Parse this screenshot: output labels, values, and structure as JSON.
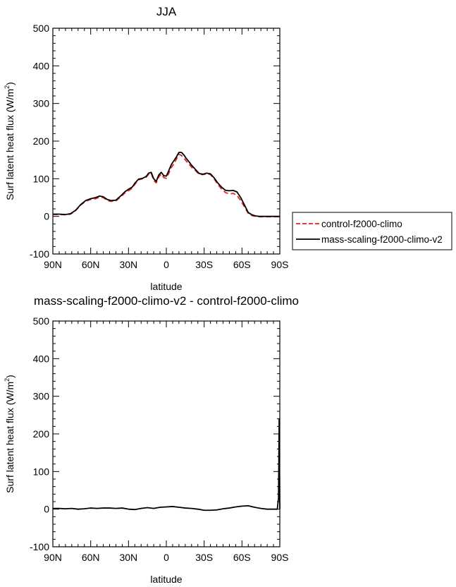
{
  "chart_data": [
    {
      "type": "line",
      "title": "JJA",
      "xlabel": "latitude",
      "ylabel": "Surf latent heat flux (W/m",
      "ylabel_sup": "2",
      "ylabel_end": ")",
      "xlim": [
        90,
        -90
      ],
      "ylim": [
        -100,
        500
      ],
      "xticks": [
        90,
        60,
        30,
        0,
        -30,
        -60,
        -90
      ],
      "xtick_labels": [
        "90N",
        "60N",
        "30N",
        "0",
        "30S",
        "60S",
        "90S"
      ],
      "yticks": [
        -100,
        0,
        100,
        200,
        300,
        400,
        500
      ],
      "ytick_labels": [
        "-100",
        "0",
        "100",
        "200",
        "300",
        "400",
        "500"
      ],
      "legend": "right-outside",
      "series": [
        {
          "name": "control-f2000-climo",
          "color": "#e8221c",
          "dash": "dashed",
          "x": [
            90,
            85,
            80,
            76,
            72,
            68,
            64,
            60,
            56,
            53,
            50,
            47,
            44,
            40,
            36,
            33,
            30,
            27,
            25,
            22,
            19,
            16,
            14,
            12,
            10,
            8,
            6,
            4,
            2,
            0,
            -2,
            -4,
            -6,
            -8,
            -10,
            -12,
            -14,
            -16,
            -18,
            -20,
            -23,
            -26,
            -29,
            -32,
            -35,
            -38,
            -41,
            -44,
            -47,
            -50,
            -53,
            -56,
            -59,
            -62,
            -65,
            -68,
            -71,
            -74,
            -77,
            -80,
            -84,
            -88,
            -90
          ],
          "y": [
            5,
            5,
            4,
            6,
            15,
            30,
            40,
            45,
            47,
            51,
            50,
            42,
            40,
            41,
            52,
            62,
            68,
            75,
            85,
            97,
            100,
            104,
            112,
            115,
            95,
            89,
            105,
            112,
            103,
            101,
            115,
            130,
            140,
            152,
            165,
            162,
            155,
            146,
            139,
            131,
            122,
            112,
            111,
            113,
            111,
            99,
            84,
            72,
            63,
            60,
            61,
            56,
            42,
            25,
            8,
            2,
            0,
            -1,
            -1,
            -1,
            -1,
            -1,
            -1
          ]
        },
        {
          "name": "mass-scaling-f2000-climo-v2",
          "color": "#000000",
          "dash": "solid",
          "x": [
            90,
            85,
            80,
            76,
            72,
            68,
            64,
            60,
            56,
            53,
            50,
            47,
            44,
            40,
            36,
            33,
            30,
            27,
            25,
            22,
            19,
            16,
            14,
            12,
            10,
            8,
            6,
            4,
            2,
            0,
            -2,
            -4,
            -6,
            -8,
            -10,
            -12,
            -14,
            -16,
            -18,
            -20,
            -23,
            -26,
            -29,
            -32,
            -35,
            -38,
            -41,
            -44,
            -47,
            -50,
            -53,
            -56,
            -59,
            -62,
            -65,
            -68,
            -71,
            -74,
            -77,
            -80,
            -84,
            -88,
            -90
          ],
          "y": [
            6,
            6,
            5,
            7,
            16,
            31,
            42,
            47,
            50,
            54,
            52,
            45,
            42,
            43,
            55,
            65,
            72,
            78,
            88,
            99,
            101,
            106,
            115,
            117,
            100,
            93,
            110,
            117,
            108,
            107,
            122,
            138,
            148,
            158,
            170,
            170,
            163,
            153,
            145,
            136,
            125,
            114,
            112,
            115,
            113,
            102,
            88,
            77,
            69,
            68,
            69,
            65,
            50,
            30,
            10,
            4,
            1,
            0,
            0,
            0,
            0,
            0,
            0
          ]
        }
      ]
    },
    {
      "type": "line",
      "title": "mass-scaling-f2000-climo-v2 - control-f2000-climo",
      "xlabel": "latitude",
      "ylabel": "Surf latent heat flux (W/m",
      "ylabel_sup": "2",
      "ylabel_end": ")",
      "xlim": [
        90,
        -90
      ],
      "ylim": [
        -100,
        500
      ],
      "xticks": [
        90,
        60,
        30,
        0,
        -30,
        -60,
        -90
      ],
      "xtick_labels": [
        "90N",
        "60N",
        "30N",
        "0",
        "30S",
        "60S",
        "90S"
      ],
      "yticks": [
        -100,
        0,
        100,
        200,
        300,
        400,
        500
      ],
      "ytick_labels": [
        "-100",
        "0",
        "100",
        "200",
        "300",
        "400",
        "500"
      ],
      "series": [
        {
          "color": "#000000",
          "dash": "solid",
          "x": [
            90,
            85,
            80,
            75,
            70,
            65,
            60,
            55,
            50,
            45,
            40,
            35,
            30,
            25,
            20,
            15,
            10,
            5,
            0,
            -5,
            -10,
            -15,
            -20,
            -25,
            -30,
            -35,
            -40,
            -45,
            -50,
            -55,
            -60,
            -65,
            -70,
            -75,
            -80,
            -85,
            -88,
            -89,
            -89.5,
            -90
          ],
          "y": [
            2,
            2,
            1,
            2,
            0,
            1,
            3,
            2,
            3,
            3,
            2,
            3,
            0,
            -1,
            2,
            4,
            2,
            5,
            6,
            7,
            5,
            3,
            2,
            0,
            -3,
            -3,
            -2,
            1,
            3,
            6,
            8,
            9,
            5,
            2,
            0,
            0,
            0,
            30,
            240,
            0
          ]
        }
      ]
    }
  ]
}
